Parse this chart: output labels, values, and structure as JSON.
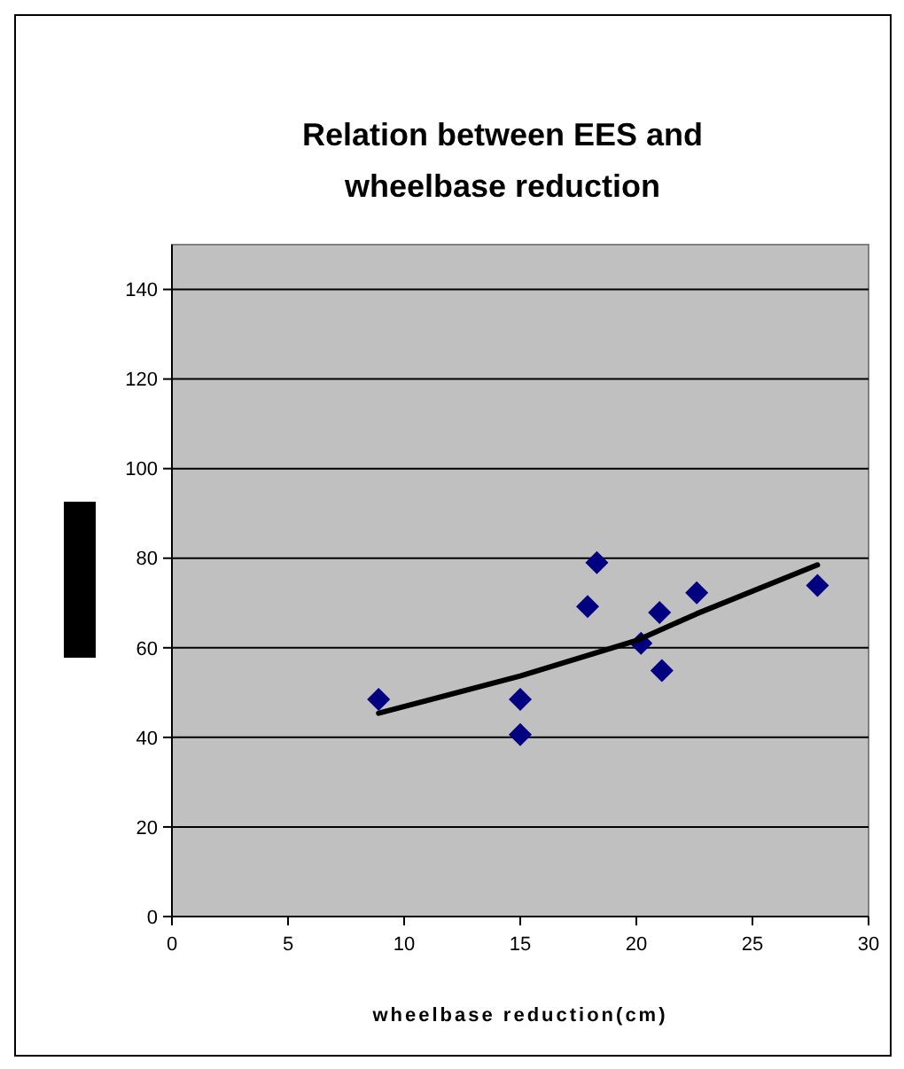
{
  "chart_data": {
    "type": "scatter",
    "title": "Relation between EES and wheelbase reduction",
    "xlabel": "wheelbase reduction(cm)",
    "xlim": [
      0,
      30
    ],
    "xticks": [
      0,
      5,
      10,
      15,
      20,
      25,
      30
    ],
    "ylim": [
      0,
      150
    ],
    "yticks": [
      0,
      20,
      40,
      60,
      80,
      100,
      120,
      140
    ],
    "grid": "y",
    "marker": "diamond",
    "series": [
      {
        "color": "#000080",
        "x": [
          8.9,
          15,
          15,
          17.9,
          18.3,
          20.2,
          21,
          21.1,
          22.6,
          27.8
        ],
        "values": [
          48.5,
          48.5,
          40.6,
          69.2,
          79,
          61,
          67.9,
          54.9,
          72.3,
          73.9
        ]
      },
      {
        "type": "line",
        "color": "#000000",
        "marker": "none",
        "line_style": "solid",
        "x": [
          8.9,
          15,
          20,
          22.6,
          27.8
        ],
        "values": [
          45.4,
          53.7,
          61.6,
          67.6,
          78.5
        ]
      }
    ]
  }
}
